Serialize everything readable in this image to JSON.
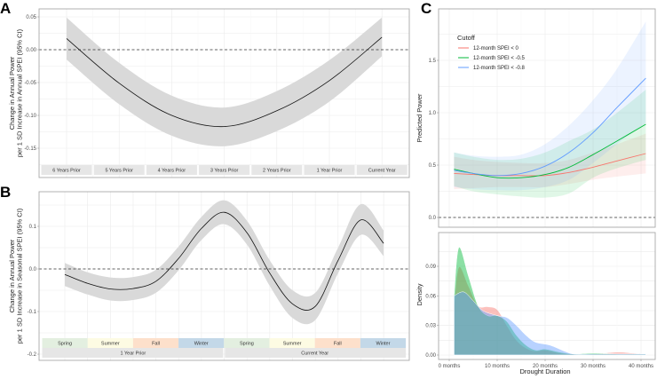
{
  "chart_data": [
    {
      "panel": "A",
      "type": "line",
      "ylabel": [
        "Change in Annual Power",
        "per 1 SD Increase in Annual SPEI (95% CI)"
      ],
      "categories": [
        "6 Years Prior",
        "5 Years Prior",
        "4 Years Prior",
        "3 Years Prior",
        "2 Years Prior",
        "1 Year Prior",
        "Current Year"
      ],
      "estimate": [
        0.017,
        -0.051,
        -0.1,
        -0.117,
        -0.093,
        -0.047,
        0.019
      ],
      "ci_lower": [
        -0.015,
        -0.083,
        -0.131,
        -0.147,
        -0.124,
        -0.079,
        -0.01
      ],
      "ci_upper": [
        0.049,
        -0.02,
        -0.07,
        -0.088,
        -0.063,
        -0.016,
        0.049
      ],
      "yticks": [
        "0.05",
        "0.00",
        "-0.05",
        "-0.10",
        "-0.15"
      ],
      "ytick_values": [
        0.05,
        0.0,
        -0.05,
        -0.1,
        -0.15
      ],
      "ylim": [
        -0.185,
        0.063
      ],
      "reference_line": 0
    },
    {
      "panel": "B",
      "type": "line",
      "ylabel": [
        "Change in Annual Power",
        "per 1 SD Increase in Seasonal SPEI (95% CI)"
      ],
      "seasons": [
        "Spring",
        "Summer",
        "Fall",
        "Winter",
        "Spring",
        "Summer",
        "Fall",
        "Winter"
      ],
      "season_colors": [
        "#e3efe0",
        "#fdfbe3",
        "#fde0cb",
        "#c3d8e8",
        "#e3efe0",
        "#fdfbe3",
        "#fde0cb",
        "#c3d8e8"
      ],
      "years": [
        "1 Year Prior",
        "Current Year"
      ],
      "estimate": [
        -0.013,
        -0.034,
        -0.047,
        -0.046,
        -0.029,
        0.025,
        0.095,
        0.133,
        0.085,
        -0.01,
        -0.082,
        -0.088,
        0.02,
        0.115,
        0.06
      ],
      "ci_lower": [
        -0.04,
        -0.06,
        -0.074,
        -0.073,
        -0.056,
        -0.003,
        0.068,
        0.105,
        0.057,
        -0.04,
        -0.115,
        -0.12,
        -0.01,
        0.08,
        0.03
      ],
      "ci_upper": [
        0.014,
        -0.008,
        -0.02,
        -0.019,
        -0.002,
        0.053,
        0.122,
        0.161,
        0.113,
        0.02,
        -0.05,
        -0.056,
        0.05,
        0.152,
        0.09
      ],
      "yticks": [
        "0.1",
        "0.0",
        "-0.1",
        "-0.2"
      ],
      "ytick_values": [
        0.1,
        0.0,
        -0.1,
        -0.2
      ],
      "ylim": [
        -0.213,
        0.183
      ],
      "reference_line": 0
    },
    {
      "panel": "C",
      "type": "line",
      "ylabel": "Predicted Power",
      "legend_title": "Cutoff",
      "legend_position": "top-left",
      "x": [
        1,
        5,
        10,
        15,
        20,
        25,
        30,
        35,
        41
      ],
      "series": [
        {
          "name": "12-month SPEI < 0",
          "color": "#f8766d",
          "values": [
            0.42,
            0.41,
            0.4,
            0.4,
            0.4,
            0.43,
            0.48,
            0.54,
            0.61
          ],
          "ci_lower": [
            0.27,
            0.28,
            0.29,
            0.29,
            0.29,
            0.32,
            0.36,
            0.39,
            0.42
          ],
          "ci_upper": [
            0.58,
            0.55,
            0.53,
            0.52,
            0.52,
            0.55,
            0.62,
            0.7,
            0.8
          ]
        },
        {
          "name": "12-month SPEI < -0.5",
          "color": "#00ba38",
          "values": [
            0.46,
            0.42,
            0.38,
            0.38,
            0.41,
            0.48,
            0.6,
            0.73,
            0.89
          ],
          "ci_lower": [
            0.3,
            0.25,
            0.22,
            0.2,
            0.19,
            0.23,
            0.38,
            0.47,
            0.55
          ],
          "ci_upper": [
            0.62,
            0.58,
            0.55,
            0.56,
            0.62,
            0.73,
            0.84,
            1.0,
            1.22
          ]
        },
        {
          "name": "12-month SPEI < -0.8",
          "color": "#619cff",
          "values": [
            0.45,
            0.42,
            0.4,
            0.42,
            0.49,
            0.62,
            0.81,
            1.05,
            1.33
          ],
          "ci_lower": [
            0.29,
            0.27,
            0.26,
            0.26,
            0.29,
            0.36,
            0.52,
            0.7,
            0.9
          ],
          "ci_upper": [
            0.62,
            0.59,
            0.58,
            0.6,
            0.7,
            0.88,
            1.12,
            1.42,
            1.87
          ]
        }
      ],
      "yticks": [
        "1.5",
        "1.0",
        "0.5",
        "0.0"
      ],
      "ytick_values": [
        1.5,
        1.0,
        0.5,
        0.0
      ],
      "ylim": [
        -0.1,
        1.95
      ],
      "reference_line": 0
    },
    {
      "panel": "C-density",
      "type": "area",
      "xlabel": "Drought Duration",
      "ylabel": "Density",
      "xticks": [
        "0 months",
        "10 months",
        "20 months",
        "30 months",
        "40 months"
      ],
      "xtick_values": [
        0,
        10,
        20,
        30,
        40
      ],
      "xlim": [
        -2,
        43
      ],
      "yticks": [
        "0.09",
        "0.06",
        "0.03",
        "0.00"
      ],
      "ytick_values": [
        0.09,
        0.06,
        0.03,
        0.0
      ],
      "ylim": [
        -0.0015,
        0.1155
      ],
      "series": [
        {
          "name": "12-month SPEI < 0",
          "color": "#f8766d",
          "x": [
            1,
            2,
            4,
            6,
            8,
            10,
            12,
            14,
            16,
            18,
            20,
            23,
            26,
            30,
            35,
            38,
            41
          ],
          "values": [
            0.05,
            0.089,
            0.07,
            0.05,
            0.049,
            0.046,
            0.03,
            0.015,
            0.007,
            0.004,
            0.005,
            0.002,
            0.001,
            0.001,
            0.003,
            0.002,
            0.001
          ]
        },
        {
          "name": "12-month SPEI < -0.5",
          "color": "#00ba38",
          "x": [
            1,
            2,
            4,
            6,
            8,
            10,
            12,
            14,
            16,
            18,
            20,
            23,
            26,
            30,
            35,
            38,
            41
          ],
          "values": [
            0.06,
            0.109,
            0.08,
            0.05,
            0.04,
            0.04,
            0.034,
            0.02,
            0.01,
            0.005,
            0.006,
            0.003,
            0.001,
            0.002,
            0.001,
            0.001,
            0.001
          ]
        },
        {
          "name": "12-month SPEI < -0.8",
          "color": "#619cff",
          "x": [
            1,
            3,
            5,
            7,
            10,
            12,
            14,
            16,
            18,
            21,
            24,
            26,
            30,
            35,
            38,
            41
          ],
          "values": [
            0.06,
            0.064,
            0.055,
            0.045,
            0.04,
            0.038,
            0.03,
            0.02,
            0.013,
            0.01,
            0.004,
            0.001,
            0.001,
            0.001,
            0.001,
            0.001
          ]
        }
      ]
    }
  ],
  "panel_labels": [
    "A",
    "B",
    "C"
  ]
}
